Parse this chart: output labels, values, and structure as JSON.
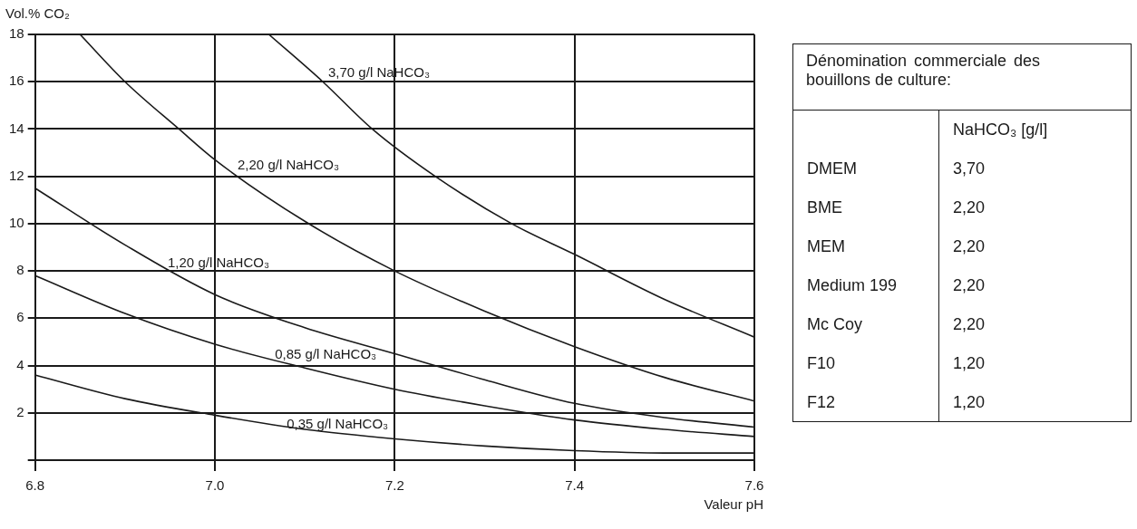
{
  "chart_data": [
    {
      "type": "line",
      "xlabel": "Valeur pH",
      "ylabel": "Vol.% CO₂",
      "xlim": [
        6.8,
        7.6
      ],
      "xticks": [
        6.8,
        {
          "value": 7,
          "label": "7.0"
        },
        7.2,
        7.4,
        7.6
      ],
      "ylim": [
        0,
        18
      ],
      "yticks": [
        {
          "value": 0,
          "label": null
        },
        2,
        4,
        6,
        8,
        10,
        12,
        14,
        16,
        18
      ],
      "grid": true,
      "legend": false,
      "marker": "none",
      "line_style": "solid",
      "series": [
        {
          "name": "3,70 g/l NaHCO₃",
          "color": "#1a1a1a",
          "x": [
            7.06,
            7.12,
            7.175,
            7.245,
            7.33,
            7.4,
            7.5,
            7.6
          ],
          "values": [
            18,
            16,
            14,
            12,
            10,
            8.7,
            6.8,
            5.2
          ]
        },
        {
          "name": "2,20 g/l NaHCO₃",
          "color": "#1a1a1a",
          "x": [
            6.85,
            6.9,
            6.96,
            7.0,
            7.1,
            7.2,
            7.3,
            7.4,
            7.5,
            7.6
          ],
          "values": [
            18,
            16,
            14,
            12.7,
            10.1,
            8,
            6.3,
            4.8,
            3.5,
            2.5
          ]
        },
        {
          "name": "1,20 g/l NaHCO₃",
          "color": "#1a1a1a",
          "x": [
            6.8,
            6.9,
            7.0,
            7.1,
            7.2,
            7.3,
            7.4,
            7.5,
            7.6
          ],
          "values": [
            11.5,
            9.1,
            7,
            5.6,
            4.5,
            3.4,
            2.4,
            1.8,
            1.4
          ]
        },
        {
          "name": "0,85 g/l NaHCO₃",
          "color": "#1a1a1a",
          "x": [
            6.8,
            6.9,
            7.0,
            7.1,
            7.2,
            7.3,
            7.4,
            7.5,
            7.6
          ],
          "values": [
            7.8,
            6.2,
            4.9,
            3.9,
            3,
            2.3,
            1.7,
            1.3,
            1
          ]
        },
        {
          "name": "0,35 g/l NaHCO₃",
          "color": "#1a1a1a",
          "x": [
            6.8,
            6.9,
            7.0,
            7.1,
            7.2,
            7.3,
            7.4,
            7.5,
            7.6
          ],
          "values": [
            3.6,
            2.6,
            1.9,
            1.3,
            0.9,
            0.6,
            0.4,
            0.3,
            0.3
          ]
        }
      ]
    },
    {
      "type": "other",
      "title": "Dénomination commerciale des bouillons de culture:",
      "ylabel": "NaHCO₃ [g/l]",
      "categories": [
        "DMEM",
        "BME",
        "MEM",
        "Medium 199",
        "Mc Coy",
        "F10",
        "F12"
      ],
      "value_labels": [
        "3,70",
        "2,20",
        "2,20",
        "2,20",
        "2,20",
        "1,20",
        "1,20"
      ]
    }
  ]
}
